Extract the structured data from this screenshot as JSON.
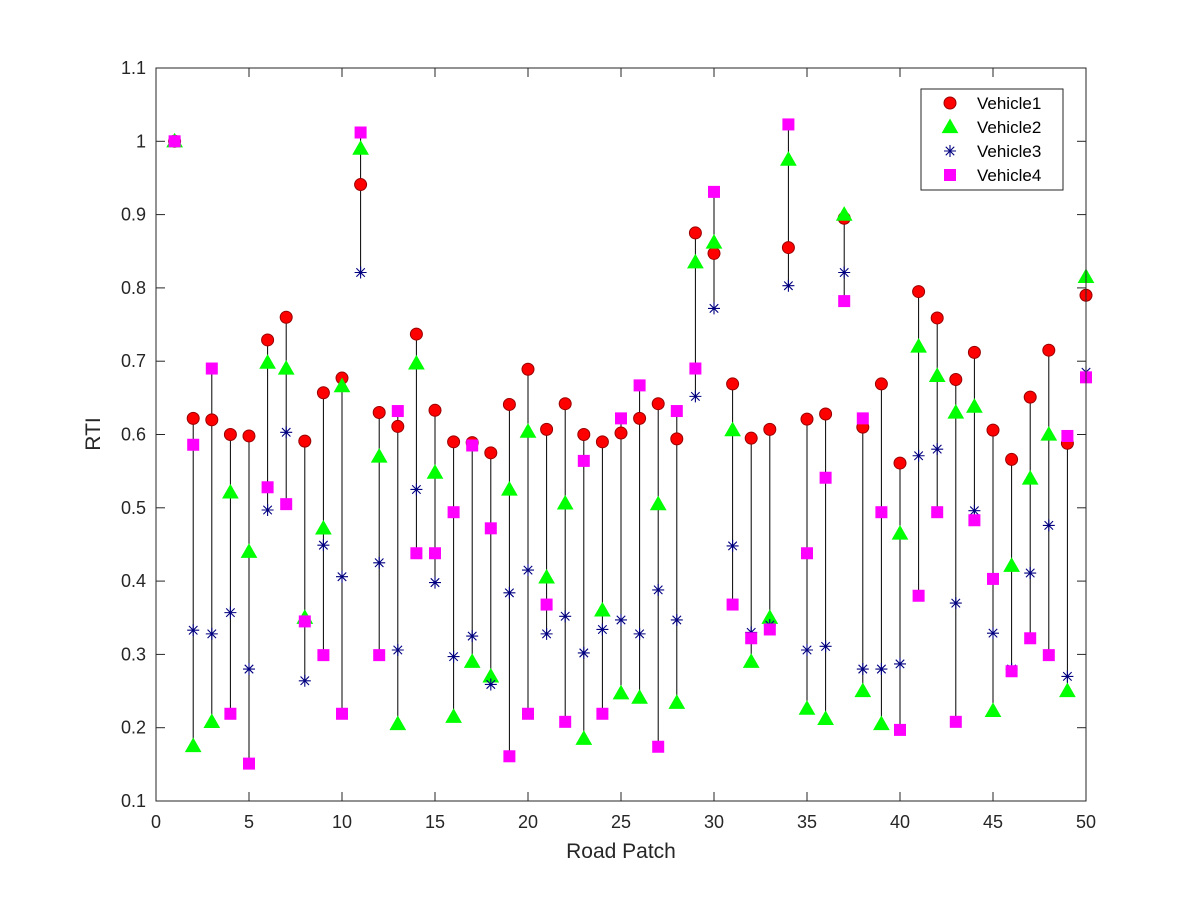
{
  "chart_data": {
    "type": "scatter",
    "xlabel": "Road Patch",
    "ylabel": "RTI",
    "xlim": [
      0,
      50
    ],
    "ylim": [
      0.1,
      1.1
    ],
    "x_ticks": [
      "0",
      "5",
      "10",
      "15",
      "20",
      "25",
      "30",
      "35",
      "40",
      "45",
      "50"
    ],
    "y_ticks": [
      "0.1",
      "0.2",
      "0.3",
      "0.4",
      "0.5",
      "0.6",
      "0.7",
      "0.8",
      "0.9",
      "1",
      "1.1"
    ],
    "grid": false,
    "legend_position": "top-right",
    "x": [
      1,
      2,
      3,
      4,
      5,
      6,
      7,
      8,
      9,
      10,
      11,
      12,
      13,
      14,
      15,
      16,
      17,
      18,
      19,
      20,
      21,
      22,
      23,
      24,
      25,
      26,
      27,
      28,
      29,
      30,
      31,
      32,
      33,
      34,
      35,
      36,
      37,
      38,
      39,
      40,
      41,
      42,
      43,
      44,
      45,
      46,
      47,
      48,
      49,
      50
    ],
    "series": [
      {
        "name": "Vehicle1",
        "marker": "circle",
        "color": "#ff0000",
        "values": [
          1.0,
          0.622,
          0.62,
          0.6,
          0.598,
          0.729,
          0.76,
          0.591,
          0.657,
          0.677,
          0.941,
          0.63,
          0.611,
          0.737,
          0.633,
          0.59,
          0.589,
          0.575,
          0.641,
          0.689,
          0.607,
          0.642,
          0.6,
          0.59,
          0.602,
          0.622,
          0.642,
          0.594,
          0.875,
          0.847,
          0.669,
          0.595,
          0.607,
          0.855,
          0.621,
          0.628,
          0.895,
          0.61,
          0.669,
          0.561,
          0.795,
          0.759,
          0.675,
          0.712,
          0.606,
          0.566,
          0.651,
          0.715,
          0.588,
          0.79
        ]
      },
      {
        "name": "Vehicle2",
        "marker": "triangle",
        "color": "#00ff00",
        "values": [
          1.0,
          0.175,
          0.208,
          0.521,
          0.44,
          0.698,
          0.69,
          0.35,
          0.472,
          0.666,
          0.99,
          0.57,
          0.205,
          0.697,
          0.548,
          0.215,
          0.29,
          0.27,
          0.525,
          0.604,
          0.405,
          0.506,
          0.185,
          0.36,
          0.247,
          0.241,
          0.505,
          0.234,
          0.835,
          0.862,
          0.606,
          0.29,
          0.35,
          0.975,
          0.226,
          0.212,
          0.9,
          0.25,
          0.205,
          0.465,
          0.72,
          0.68,
          0.63,
          0.638,
          0.223,
          0.421,
          0.54,
          0.6,
          0.25,
          0.815
        ]
      },
      {
        "name": "Vehicle3",
        "marker": "asterisk",
        "color": "#000080",
        "values": [
          1.0,
          0.333,
          0.328,
          0.357,
          0.28,
          0.497,
          0.603,
          0.264,
          0.449,
          0.406,
          0.821,
          0.425,
          0.306,
          0.525,
          0.398,
          0.297,
          0.325,
          0.259,
          0.384,
          0.415,
          0.328,
          0.352,
          0.302,
          0.334,
          0.347,
          0.328,
          0.388,
          0.347,
          0.652,
          0.772,
          0.448,
          0.33,
          0.34,
          0.803,
          0.306,
          0.311,
          0.821,
          0.28,
          0.28,
          0.287,
          0.571,
          0.58,
          0.37,
          0.496,
          0.329,
          0.28,
          0.411,
          0.476,
          0.27,
          0.685
        ]
      },
      {
        "name": "Vehicle4",
        "marker": "square",
        "color": "#ff00ff",
        "values": [
          1.0,
          0.586,
          0.69,
          0.219,
          0.151,
          0.528,
          0.505,
          0.345,
          0.299,
          0.219,
          1.012,
          0.299,
          0.632,
          0.438,
          0.438,
          0.494,
          0.585,
          0.472,
          0.161,
          0.219,
          0.368,
          0.208,
          0.564,
          0.219,
          0.622,
          0.667,
          0.174,
          0.632,
          0.69,
          0.931,
          0.368,
          0.322,
          0.334,
          1.023,
          0.438,
          0.541,
          0.782,
          0.622,
          0.494,
          0.197,
          0.38,
          0.494,
          0.208,
          0.483,
          0.403,
          0.277,
          0.322,
          0.299,
          0.598,
          0.678
        ]
      }
    ]
  }
}
